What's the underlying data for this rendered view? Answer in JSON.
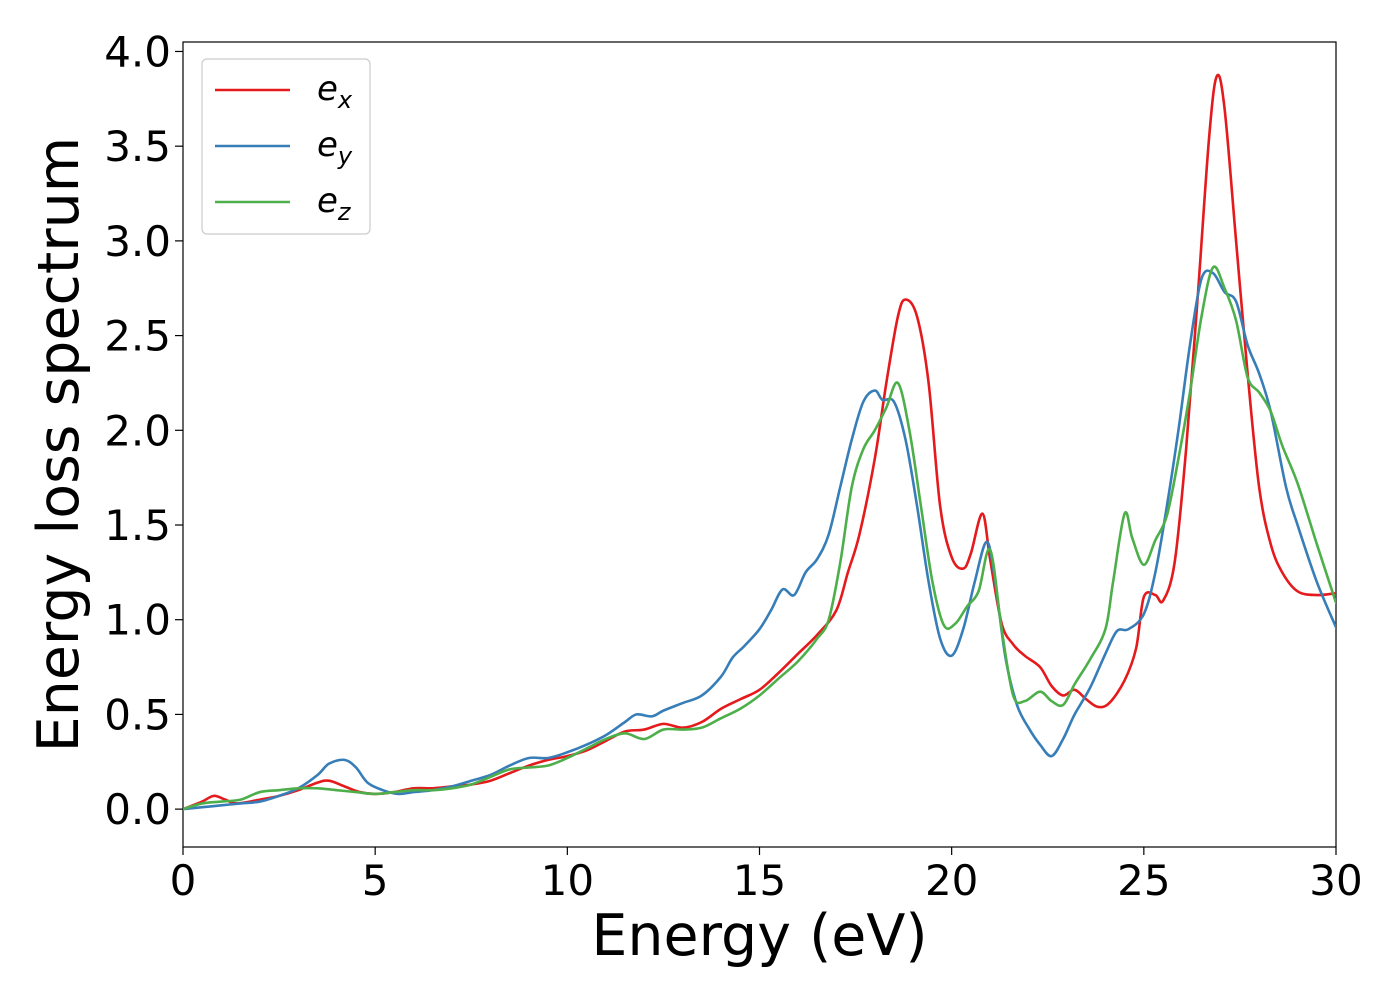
{
  "chart_data": {
    "type": "line",
    "title": "",
    "xlabel": "Energy (eV)",
    "ylabel": "Energy loss spectrum",
    "xlim": [
      0,
      30
    ],
    "ylim": [
      -0.2,
      4.05
    ],
    "xticks": [
      0,
      5,
      10,
      15,
      20,
      25,
      30
    ],
    "xtick_labels": [
      "0",
      "5",
      "10",
      "15",
      "20",
      "25",
      "30"
    ],
    "yticks": [
      0.0,
      0.5,
      1.0,
      1.5,
      2.0,
      2.5,
      3.0,
      3.5,
      4.0
    ],
    "ytick_labels": [
      "0.0",
      "0.5",
      "1.0",
      "1.5",
      "2.0",
      "2.5",
      "3.0",
      "3.5",
      "4.0"
    ],
    "grid": false,
    "legend_position": "top-left",
    "series": [
      {
        "name": "e",
        "subscript": "x",
        "color": "#e41a1c",
        "points": [
          [
            0,
            0
          ],
          [
            0.5,
            0.04
          ],
          [
            0.8,
            0.07
          ],
          [
            1.1,
            0.05
          ],
          [
            1.4,
            0.03
          ],
          [
            2,
            0.05
          ],
          [
            2.5,
            0.07
          ],
          [
            3,
            0.1
          ],
          [
            3.5,
            0.14
          ],
          [
            3.8,
            0.15
          ],
          [
            4.2,
            0.12
          ],
          [
            4.6,
            0.09
          ],
          [
            5,
            0.08
          ],
          [
            5.5,
            0.09
          ],
          [
            6,
            0.11
          ],
          [
            6.5,
            0.11
          ],
          [
            7,
            0.12
          ],
          [
            7.5,
            0.13
          ],
          [
            8,
            0.15
          ],
          [
            8.5,
            0.19
          ],
          [
            9,
            0.23
          ],
          [
            9.5,
            0.26
          ],
          [
            10,
            0.28
          ],
          [
            10.5,
            0.31
          ],
          [
            11,
            0.36
          ],
          [
            11.5,
            0.41
          ],
          [
            12,
            0.42
          ],
          [
            12.5,
            0.45
          ],
          [
            13,
            0.43
          ],
          [
            13.5,
            0.46
          ],
          [
            14,
            0.53
          ],
          [
            14.5,
            0.58
          ],
          [
            15,
            0.63
          ],
          [
            15.5,
            0.72
          ],
          [
            16,
            0.82
          ],
          [
            16.5,
            0.92
          ],
          [
            17,
            1.05
          ],
          [
            17.3,
            1.25
          ],
          [
            17.6,
            1.45
          ],
          [
            18,
            1.85
          ],
          [
            18.3,
            2.25
          ],
          [
            18.6,
            2.6
          ],
          [
            18.8,
            2.69
          ],
          [
            19.1,
            2.6
          ],
          [
            19.4,
            2.25
          ],
          [
            19.7,
            1.6
          ],
          [
            20,
            1.33
          ],
          [
            20.3,
            1.27
          ],
          [
            20.5,
            1.35
          ],
          [
            20.8,
            1.56
          ],
          [
            21,
            1.32
          ],
          [
            21.3,
            0.98
          ],
          [
            21.6,
            0.87
          ],
          [
            21.9,
            0.81
          ],
          [
            22.3,
            0.75
          ],
          [
            22.6,
            0.65
          ],
          [
            22.9,
            0.6
          ],
          [
            23.2,
            0.63
          ],
          [
            23.5,
            0.58
          ],
          [
            23.8,
            0.54
          ],
          [
            24.1,
            0.56
          ],
          [
            24.5,
            0.68
          ],
          [
            24.8,
            0.85
          ],
          [
            25,
            1.12
          ],
          [
            25.3,
            1.13
          ],
          [
            25.5,
            1.1
          ],
          [
            25.8,
            1.3
          ],
          [
            26.1,
            1.9
          ],
          [
            26.4,
            2.7
          ],
          [
            26.7,
            3.55
          ],
          [
            26.9,
            3.87
          ],
          [
            27.1,
            3.7
          ],
          [
            27.4,
            3.0
          ],
          [
            27.7,
            2.3
          ],
          [
            28,
            1.7
          ],
          [
            28.3,
            1.4
          ],
          [
            28.6,
            1.25
          ],
          [
            29,
            1.15
          ],
          [
            29.5,
            1.13
          ],
          [
            30,
            1.14
          ]
        ]
      },
      {
        "name": "e",
        "subscript": "y",
        "color": "#377eb8",
        "points": [
          [
            0,
            0
          ],
          [
            0.5,
            0.01
          ],
          [
            1,
            0.02
          ],
          [
            1.5,
            0.03
          ],
          [
            2,
            0.04
          ],
          [
            2.5,
            0.07
          ],
          [
            3,
            0.11
          ],
          [
            3.5,
            0.18
          ],
          [
            3.8,
            0.24
          ],
          [
            4.2,
            0.26
          ],
          [
            4.5,
            0.22
          ],
          [
            4.8,
            0.14
          ],
          [
            5.2,
            0.1
          ],
          [
            5.6,
            0.08
          ],
          [
            6,
            0.09
          ],
          [
            6.5,
            0.1
          ],
          [
            7,
            0.12
          ],
          [
            7.5,
            0.15
          ],
          [
            8,
            0.18
          ],
          [
            8.5,
            0.23
          ],
          [
            9,
            0.27
          ],
          [
            9.5,
            0.27
          ],
          [
            10,
            0.3
          ],
          [
            10.5,
            0.34
          ],
          [
            11,
            0.39
          ],
          [
            11.5,
            0.46
          ],
          [
            11.8,
            0.5
          ],
          [
            12.2,
            0.49
          ],
          [
            12.5,
            0.52
          ],
          [
            13,
            0.56
          ],
          [
            13.5,
            0.6
          ],
          [
            14,
            0.7
          ],
          [
            14.3,
            0.8
          ],
          [
            14.6,
            0.86
          ],
          [
            15,
            0.95
          ],
          [
            15.3,
            1.05
          ],
          [
            15.6,
            1.16
          ],
          [
            15.9,
            1.13
          ],
          [
            16.2,
            1.25
          ],
          [
            16.5,
            1.32
          ],
          [
            16.8,
            1.45
          ],
          [
            17.1,
            1.7
          ],
          [
            17.4,
            1.95
          ],
          [
            17.7,
            2.15
          ],
          [
            18,
            2.21
          ],
          [
            18.2,
            2.16
          ],
          [
            18.5,
            2.15
          ],
          [
            18.8,
            1.95
          ],
          [
            19.1,
            1.6
          ],
          [
            19.4,
            1.2
          ],
          [
            19.7,
            0.9
          ],
          [
            20,
            0.81
          ],
          [
            20.3,
            0.95
          ],
          [
            20.6,
            1.2
          ],
          [
            20.9,
            1.41
          ],
          [
            21.1,
            1.25
          ],
          [
            21.4,
            0.8
          ],
          [
            21.7,
            0.55
          ],
          [
            22,
            0.43
          ],
          [
            22.3,
            0.34
          ],
          [
            22.6,
            0.28
          ],
          [
            22.9,
            0.37
          ],
          [
            23.2,
            0.5
          ],
          [
            23.6,
            0.64
          ],
          [
            24,
            0.82
          ],
          [
            24.3,
            0.94
          ],
          [
            24.6,
            0.95
          ],
          [
            25,
            1.03
          ],
          [
            25.3,
            1.25
          ],
          [
            25.6,
            1.6
          ],
          [
            25.9,
            2.0
          ],
          [
            26.2,
            2.45
          ],
          [
            26.5,
            2.8
          ],
          [
            26.8,
            2.83
          ],
          [
            27.1,
            2.73
          ],
          [
            27.4,
            2.68
          ],
          [
            27.7,
            2.45
          ],
          [
            28,
            2.3
          ],
          [
            28.3,
            2.1
          ],
          [
            28.7,
            1.7
          ],
          [
            29,
            1.5
          ],
          [
            29.5,
            1.2
          ],
          [
            30,
            0.96
          ]
        ]
      },
      {
        "name": "e",
        "subscript": "z",
        "color": "#4daf4a",
        "points": [
          [
            0,
            0
          ],
          [
            0.5,
            0.03
          ],
          [
            1,
            0.04
          ],
          [
            1.5,
            0.05
          ],
          [
            2,
            0.09
          ],
          [
            2.5,
            0.1
          ],
          [
            3,
            0.11
          ],
          [
            3.5,
            0.11
          ],
          [
            4,
            0.1
          ],
          [
            4.5,
            0.09
          ],
          [
            5,
            0.08
          ],
          [
            5.5,
            0.09
          ],
          [
            6,
            0.1
          ],
          [
            6.5,
            0.1
          ],
          [
            7,
            0.11
          ],
          [
            7.5,
            0.13
          ],
          [
            8,
            0.17
          ],
          [
            8.5,
            0.21
          ],
          [
            9,
            0.22
          ],
          [
            9.5,
            0.23
          ],
          [
            10,
            0.27
          ],
          [
            10.5,
            0.32
          ],
          [
            11,
            0.37
          ],
          [
            11.5,
            0.4
          ],
          [
            12,
            0.37
          ],
          [
            12.5,
            0.42
          ],
          [
            13,
            0.42
          ],
          [
            13.5,
            0.43
          ],
          [
            14,
            0.48
          ],
          [
            14.5,
            0.53
          ],
          [
            15,
            0.6
          ],
          [
            15.5,
            0.69
          ],
          [
            16,
            0.78
          ],
          [
            16.5,
            0.9
          ],
          [
            16.8,
            1.0
          ],
          [
            17.1,
            1.3
          ],
          [
            17.4,
            1.7
          ],
          [
            17.7,
            1.9
          ],
          [
            18,
            2.0
          ],
          [
            18.3,
            2.12
          ],
          [
            18.6,
            2.25
          ],
          [
            18.9,
            2.0
          ],
          [
            19.2,
            1.6
          ],
          [
            19.5,
            1.2
          ],
          [
            19.8,
            0.97
          ],
          [
            20.1,
            0.98
          ],
          [
            20.4,
            1.07
          ],
          [
            20.7,
            1.15
          ],
          [
            21,
            1.37
          ],
          [
            21.3,
            0.95
          ],
          [
            21.6,
            0.6
          ],
          [
            21.9,
            0.57
          ],
          [
            22.3,
            0.62
          ],
          [
            22.6,
            0.57
          ],
          [
            22.9,
            0.55
          ],
          [
            23.2,
            0.66
          ],
          [
            23.6,
            0.79
          ],
          [
            24,
            0.95
          ],
          [
            24.2,
            1.2
          ],
          [
            24.5,
            1.56
          ],
          [
            24.7,
            1.43
          ],
          [
            25,
            1.29
          ],
          [
            25.3,
            1.42
          ],
          [
            25.6,
            1.55
          ],
          [
            25.9,
            1.85
          ],
          [
            26.2,
            2.2
          ],
          [
            26.5,
            2.6
          ],
          [
            26.8,
            2.86
          ],
          [
            27.1,
            2.75
          ],
          [
            27.4,
            2.58
          ],
          [
            27.7,
            2.28
          ],
          [
            28,
            2.2
          ],
          [
            28.3,
            2.1
          ],
          [
            28.6,
            1.92
          ],
          [
            29,
            1.72
          ],
          [
            29.5,
            1.4
          ],
          [
            30,
            1.09
          ]
        ]
      }
    ]
  }
}
